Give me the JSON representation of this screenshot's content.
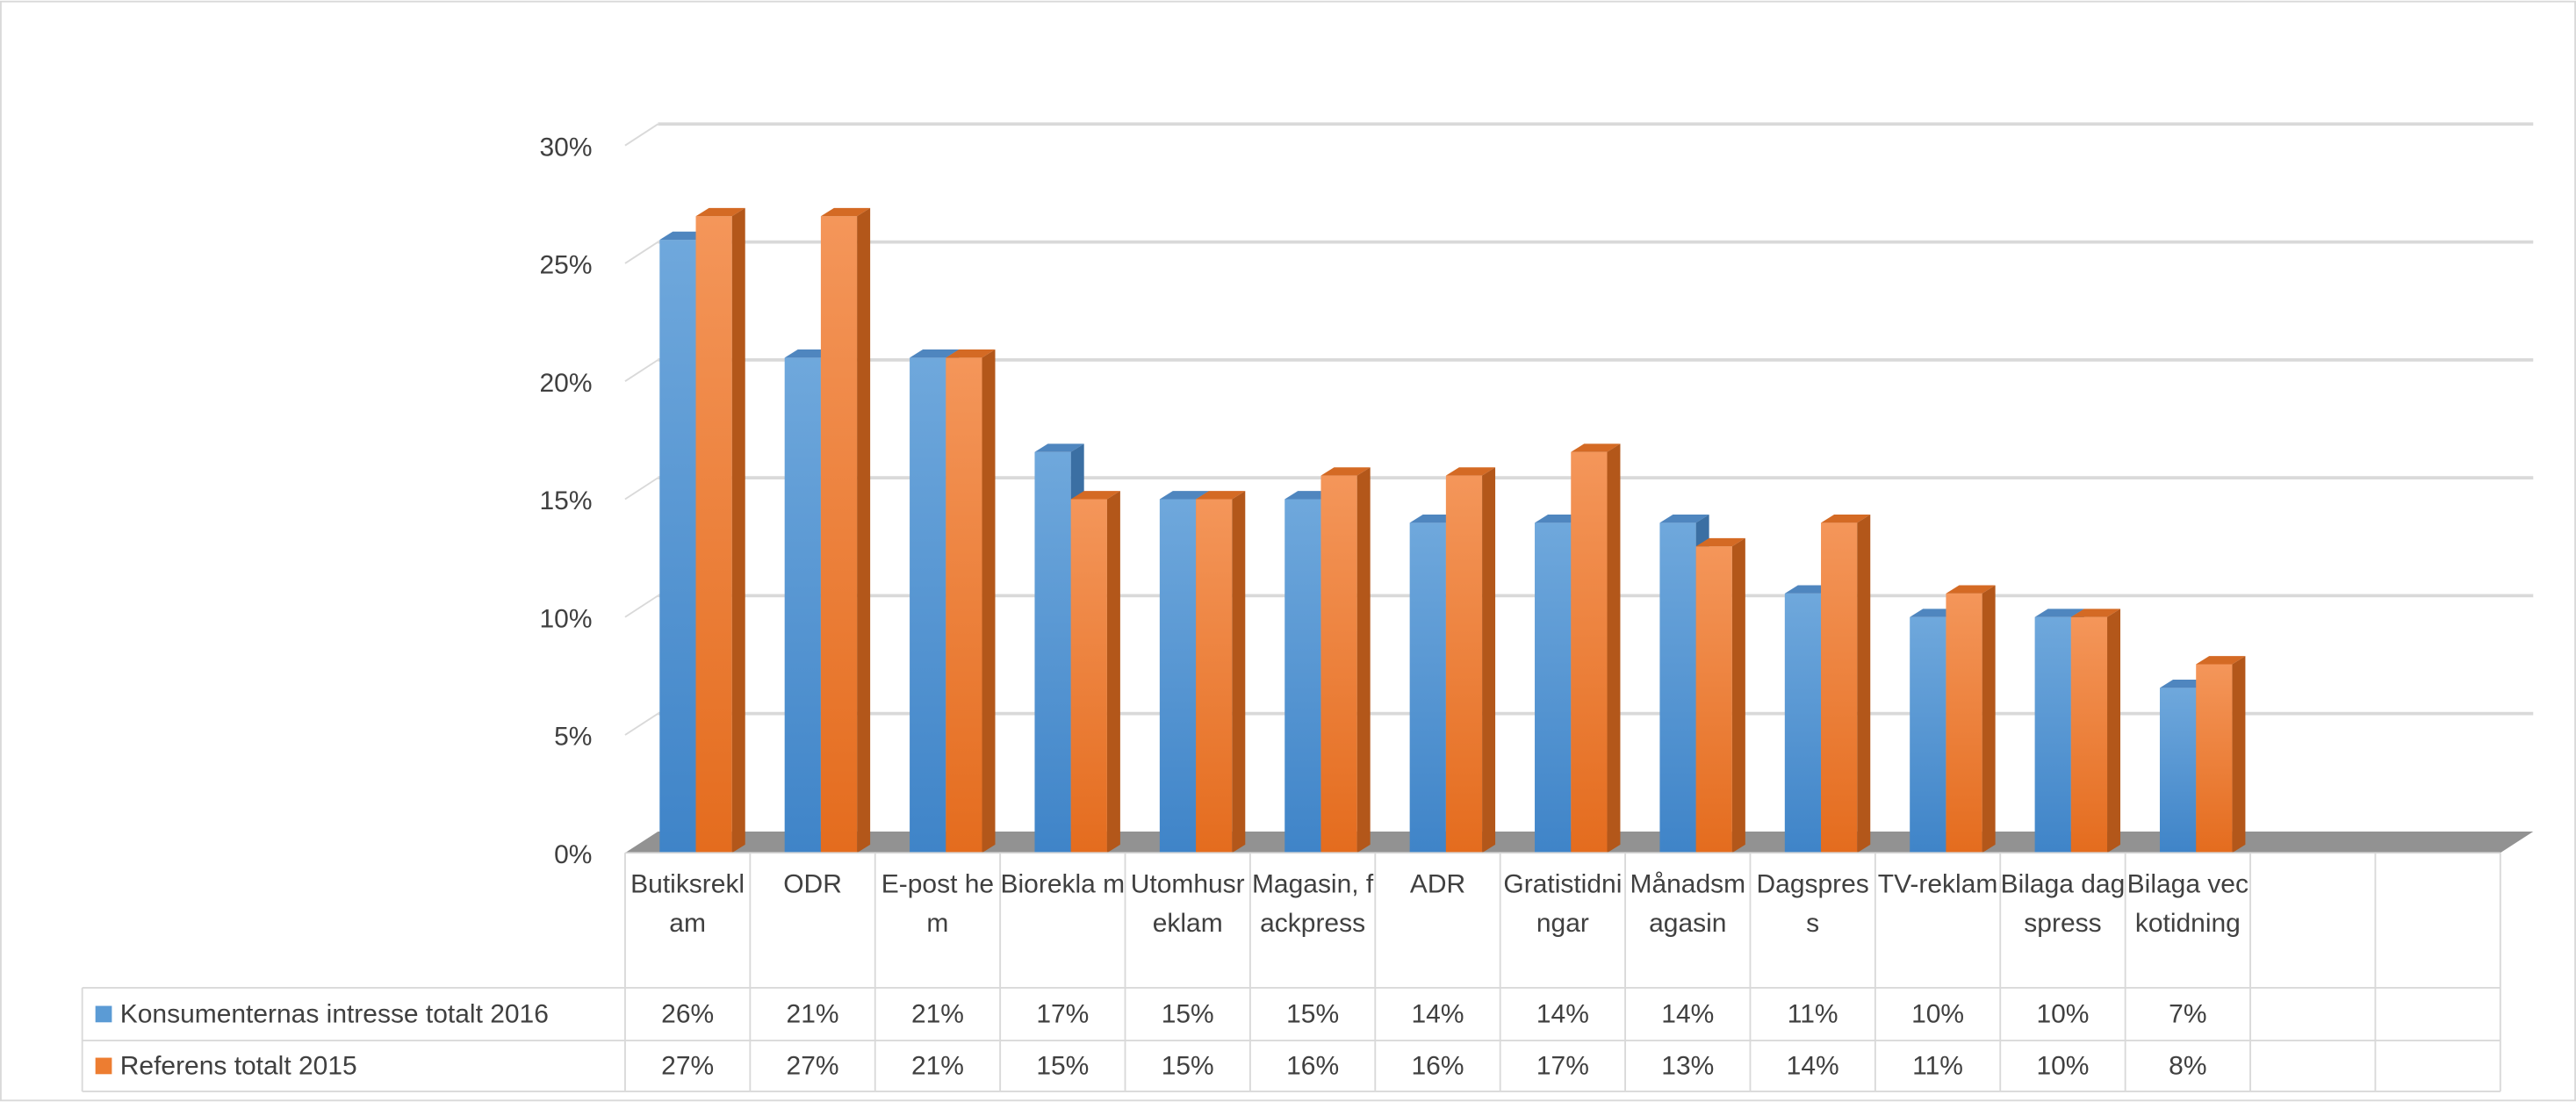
{
  "chart_data": {
    "type": "bar3d",
    "categories": [
      "Butiksreklam",
      "ODR",
      "E-post hem",
      "Biorekla m",
      "Utomhusreklam",
      "Magasin, fackpress",
      "ADR",
      "Gratistidningar",
      "Månadsmagasin",
      "Dagspress",
      "TV-reklam",
      "Bilaga dagspress",
      "Bilaga veckotidning",
      null,
      null
    ],
    "series": [
      {
        "name": "Konsumenternas intresse totalt 2016",
        "color": "#5b9bd5",
        "values": [
          26,
          21,
          21,
          17,
          15,
          15,
          14,
          14,
          14,
          11,
          10,
          10,
          7,
          null,
          null
        ],
        "value_labels": [
          "26%",
          "21%",
          "21%",
          "17%",
          "15%",
          "15%",
          "14%",
          "14%",
          "14%",
          "11%",
          "10%",
          "10%",
          "7%",
          null,
          null
        ]
      },
      {
        "name": "Referens totalt 2015",
        "color": "#ed7d31",
        "values": [
          27,
          27,
          21,
          15,
          15,
          16,
          16,
          17,
          13,
          14,
          11,
          10,
          8,
          null,
          null
        ],
        "value_labels": [
          "27%",
          "27%",
          "21%",
          "15%",
          "15%",
          "16%",
          "16%",
          "17%",
          "13%",
          "14%",
          "11%",
          "10%",
          "8%",
          null,
          null
        ]
      }
    ],
    "ylim": [
      0,
      30
    ],
    "yticks": [
      {
        "value": 0,
        "label": "0%"
      },
      {
        "value": 5,
        "label": "5%"
      },
      {
        "value": 10,
        "label": "10%"
      },
      {
        "value": 15,
        "label": "15%"
      },
      {
        "value": 20,
        "label": "20%"
      },
      {
        "value": 25,
        "label": "25%"
      },
      {
        "value": 30,
        "label": "30%"
      }
    ],
    "grid": true,
    "legend": "table"
  }
}
